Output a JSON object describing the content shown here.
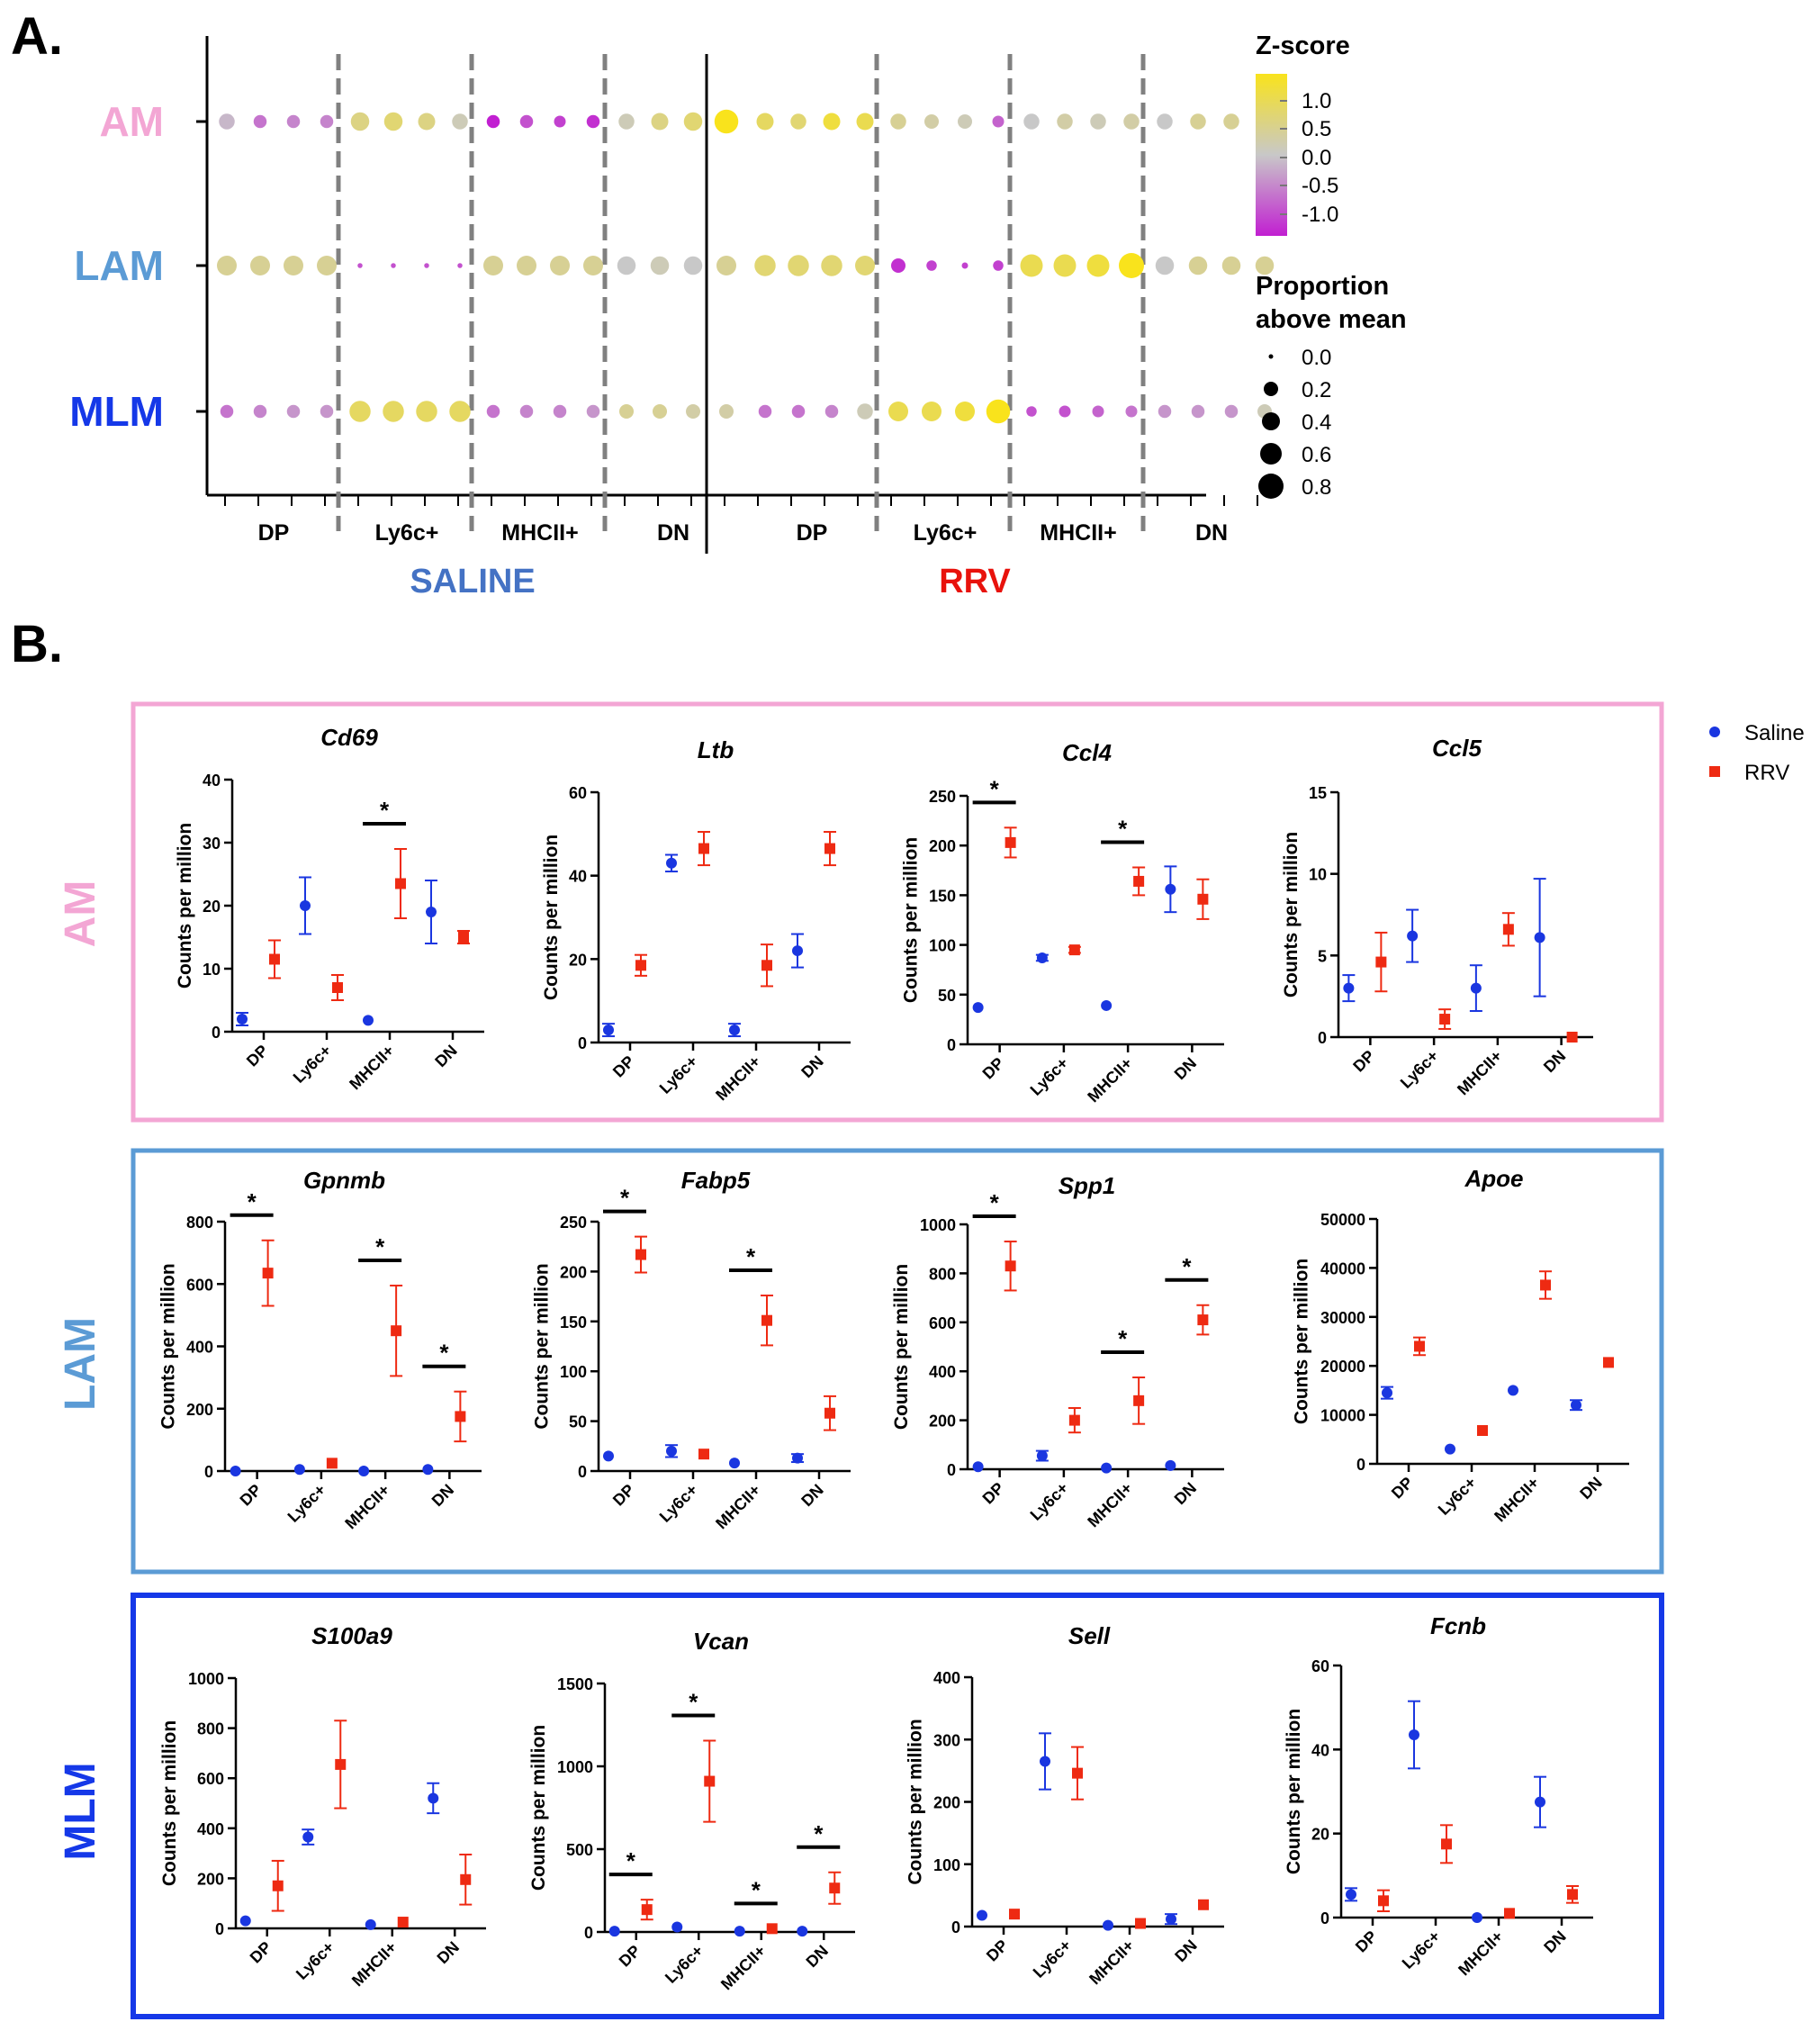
{
  "colors": {
    "saline": "#1a36e0",
    "rrv": "#ee2a12",
    "am": "#f3a6d4",
    "lam": "#5b9bd5",
    "mlm": "#1538e8",
    "saline_label": "#4472c4",
    "rrv_label": "#e8120c",
    "zscore_low": "#c11fd1",
    "zscore_mid": "#c8c8c8",
    "zscore_high": "#f9e31c"
  },
  "panelA": {
    "letter": "A.",
    "rows": [
      "AM",
      "LAM",
      "MLM"
    ],
    "groups": [
      {
        "name": "SALINE",
        "categories": [
          "DP",
          "Ly6c+",
          "MHCII+",
          "DN"
        ]
      },
      {
        "name": "RRV",
        "categories": [
          "DP",
          "Ly6c+",
          "MHCII+",
          "DN"
        ]
      }
    ],
    "legend": {
      "zscore_title": "Z-score",
      "zscore_ticks": [
        "1.0",
        "0.5",
        "0.0",
        "-0.5",
        "-1.0"
      ],
      "size_title_1": "Proportion",
      "size_title_2": "above mean",
      "size_ticks": [
        "0.0",
        "0.2",
        "0.4",
        "0.6",
        "0.8"
      ]
    }
  },
  "chart_data": [
    {
      "type": "dotplot",
      "description_rows": [
        "AM",
        "LAM",
        "MLM"
      ],
      "columns": [
        "SALINE DP",
        "SALINE Ly6c+",
        "SALINE MHCII+",
        "SALINE DN",
        "RRV DP",
        "RRV Ly6c+",
        "RRV MHCII+",
        "RRV DN"
      ],
      "genes_per_column": 4,
      "zscore": [
        [
          [
            -0.1,
            -0.5,
            -0.4,
            -0.4
          ],
          [
            0.4,
            0.5,
            0.4,
            0.1
          ],
          [
            -1.0,
            -0.7,
            -0.8,
            -0.9
          ],
          [
            0.1,
            0.4,
            0.5,
            1.0
          ],
          [
            0.6,
            0.5,
            0.8,
            0.7
          ],
          [
            0.3,
            0.2,
            0.1,
            -0.6
          ],
          [
            0.0,
            0.2,
            0.1,
            0.2
          ],
          [
            0.0,
            0.3,
            0.3,
            0.3
          ]
        ],
        [
          [
            0.3,
            0.3,
            0.3,
            0.3
          ],
          [
            -0.7,
            -0.7,
            -0.7,
            -0.7
          ],
          [
            0.3,
            0.3,
            0.3,
            0.3
          ],
          [
            0.0,
            0.1,
            0.0,
            0.3
          ],
          [
            0.5,
            0.5,
            0.5,
            0.5
          ],
          [
            -0.9,
            -0.8,
            -0.8,
            -0.8
          ],
          [
            0.7,
            0.7,
            0.8,
            1.0
          ],
          [
            0.0,
            0.3,
            0.3,
            0.3
          ]
        ],
        [
          [
            -0.5,
            -0.4,
            -0.3,
            -0.3
          ],
          [
            0.6,
            0.6,
            0.6,
            0.6
          ],
          [
            -0.5,
            -0.4,
            -0.4,
            -0.3
          ],
          [
            0.3,
            0.3,
            0.2,
            0.2
          ],
          [
            -0.5,
            -0.5,
            -0.4,
            0.1
          ],
          [
            0.7,
            0.7,
            0.8,
            1.0
          ],
          [
            -0.7,
            -0.7,
            -0.6,
            -0.5
          ],
          [
            -0.3,
            -0.3,
            -0.3,
            0.1
          ]
        ]
      ],
      "proportion": [
        [
          [
            0.45,
            0.35,
            0.35,
            0.35
          ],
          [
            0.55,
            0.55,
            0.5,
            0.45
          ],
          [
            0.35,
            0.35,
            0.3,
            0.35
          ],
          [
            0.45,
            0.5,
            0.55,
            0.75
          ],
          [
            0.5,
            0.45,
            0.5,
            0.5
          ],
          [
            0.45,
            0.4,
            0.4,
            0.3
          ],
          [
            0.45,
            0.45,
            0.45,
            0.45
          ],
          [
            0.45,
            0.45,
            0.45,
            0.5
          ]
        ],
        [
          [
            0.6,
            0.6,
            0.6,
            0.6
          ],
          [
            0.05,
            0.05,
            0.05,
            0.05
          ],
          [
            0.6,
            0.6,
            0.6,
            0.6
          ],
          [
            0.55,
            0.55,
            0.55,
            0.6
          ],
          [
            0.65,
            0.65,
            0.65,
            0.6
          ],
          [
            0.4,
            0.25,
            0.1,
            0.25
          ],
          [
            0.7,
            0.7,
            0.7,
            0.8
          ],
          [
            0.55,
            0.55,
            0.55,
            0.55
          ]
        ],
        [
          [
            0.35,
            0.35,
            0.35,
            0.35
          ],
          [
            0.65,
            0.65,
            0.65,
            0.65
          ],
          [
            0.35,
            0.35,
            0.35,
            0.35
          ],
          [
            0.4,
            0.4,
            0.4,
            0.4
          ],
          [
            0.35,
            0.35,
            0.35,
            0.45
          ],
          [
            0.6,
            0.6,
            0.6,
            0.75
          ],
          [
            0.25,
            0.3,
            0.3,
            0.3
          ],
          [
            0.35,
            0.35,
            0.35,
            0.4
          ]
        ]
      ]
    },
    {
      "type": "scatter",
      "panel": "B",
      "title_letter": "B.",
      "ylabel": "Counts per million",
      "categories": [
        "DP",
        "Ly6c+",
        "MHCII+",
        "DN"
      ],
      "series_names": [
        "Saline",
        "RRV"
      ],
      "sections": [
        {
          "name": "AM",
          "plots": [
            {
              "gene": "Cd69",
              "ylim": [
                0,
                40
              ],
              "ticks": [
                "0",
                "10",
                "20",
                "30",
                "40"
              ],
              "saline": [
                [
                  2,
                  1
                ],
                [
                  20,
                  4.5
                ],
                [
                  1.8,
                  0
                ],
                [
                  19,
                  5
                ]
              ],
              "rrv": [
                [
                  11.5,
                  3
                ],
                [
                  7,
                  2
                ],
                [
                  23.5,
                  5.5
                ],
                [
                  15,
                  1
                ]
              ],
              "sig": [
                2
              ]
            },
            {
              "gene": "Ltb",
              "ylim": [
                0,
                60
              ],
              "ticks": [
                "0",
                "20",
                "40",
                "60"
              ],
              "saline": [
                [
                  3,
                  1.5
                ],
                [
                  43,
                  2
                ],
                [
                  3,
                  1.5
                ],
                [
                  22,
                  4
                ]
              ],
              "rrv": [
                [
                  18.5,
                  2.5
                ],
                [
                  46.5,
                  4
                ],
                [
                  18.5,
                  5
                ],
                [
                  46.5,
                  4
                ]
              ],
              "sig": []
            },
            {
              "gene": "Ccl4",
              "ylim": [
                0,
                250
              ],
              "ticks": [
                "0",
                "50",
                "100",
                "150",
                "200",
                "250"
              ],
              "saline": [
                [
                  37,
                  0
                ],
                [
                  87,
                  3
                ],
                [
                  39,
                  0
                ],
                [
                  156,
                  23
                ]
              ],
              "rrv": [
                [
                  203,
                  15
                ],
                [
                  95,
                  3
                ],
                [
                  164,
                  14
                ],
                [
                  146,
                  20
                ]
              ],
              "sig": [
                0,
                2
              ]
            },
            {
              "gene": "Ccl5",
              "ylim": [
                0,
                15
              ],
              "ticks": [
                "0",
                "5",
                "10",
                "15"
              ],
              "saline": [
                [
                  3,
                  0.8
                ],
                [
                  6.2,
                  1.6
                ],
                [
                  3,
                  1.4
                ],
                [
                  6.1,
                  3.6
                ]
              ],
              "rrv": [
                [
                  4.6,
                  1.8
                ],
                [
                  1.1,
                  0.6
                ],
                [
                  6.6,
                  1
                ],
                [
                  0,
                  0
                ]
              ],
              "sig": []
            }
          ]
        },
        {
          "name": "LAM",
          "plots": [
            {
              "gene": "Gpnmb",
              "ylim": [
                0,
                800
              ],
              "ticks": [
                "0",
                "200",
                "400",
                "600",
                "800"
              ],
              "saline": [
                [
                  0,
                  0
                ],
                [
                  5,
                  0
                ],
                [
                  0,
                  0
                ],
                [
                  5,
                  0
                ]
              ],
              "rrv": [
                [
                  635,
                  105
                ],
                [
                  25,
                  0
                ],
                [
                  450,
                  145
                ],
                [
                  175,
                  80
                ]
              ],
              "sig": [
                0,
                2,
                3
              ]
            },
            {
              "gene": "Fabp5",
              "ylim": [
                0,
                250
              ],
              "ticks": [
                "0",
                "50",
                "100",
                "150",
                "200",
                "250"
              ],
              "saline": [
                [
                  15,
                  0
                ],
                [
                  20,
                  6
                ],
                [
                  8,
                  0
                ],
                [
                  13,
                  4
                ]
              ],
              "rrv": [
                [
                  217,
                  18
                ],
                [
                  17,
                  0
                ],
                [
                  151,
                  25
                ],
                [
                  58,
                  17
                ]
              ],
              "sig": [
                0,
                2
              ]
            },
            {
              "gene": "Spp1",
              "ylim": [
                0,
                1000
              ],
              "ticks": [
                "0",
                "200",
                "400",
                "600",
                "800",
                "1000"
              ],
              "saline": [
                [
                  10,
                  0
                ],
                [
                  55,
                  20
                ],
                [
                  5,
                  0
                ],
                [
                  15,
                  0
                ]
              ],
              "rrv": [
                [
                  830,
                  100
                ],
                [
                  200,
                  50
                ],
                [
                  280,
                  95
                ],
                [
                  610,
                  60
                ]
              ],
              "sig": [
                0,
                2,
                3
              ]
            },
            {
              "gene": "Apoe",
              "ylim": [
                0,
                50000
              ],
              "ticks": [
                "0",
                "10000",
                "20000",
                "30000",
                "40000",
                "50000"
              ],
              "saline": [
                [
                  14500,
                  1200
                ],
                [
                  3000,
                  0
                ],
                [
                  15000,
                  0
                ],
                [
                  12000,
                  1000
                ]
              ],
              "rrv": [
                [
                  24000,
                  1800
                ],
                [
                  6800,
                  0
                ],
                [
                  36500,
                  2800
                ],
                [
                  20700,
                  0
                ]
              ],
              "sig": []
            }
          ]
        },
        {
          "name": "MLM",
          "plots": [
            {
              "gene": "S100a9",
              "ylim": [
                0,
                1000
              ],
              "ticks": [
                "0",
                "200",
                "400",
                "600",
                "800",
                "1000"
              ],
              "saline": [
                [
                  30,
                  0
                ],
                [
                  365,
                  30
                ],
                [
                  15,
                  0
                ],
                [
                  520,
                  60
                ]
              ],
              "rrv": [
                [
                  170,
                  100
                ],
                [
                  655,
                  175
                ],
                [
                  25,
                  0
                ],
                [
                  195,
                  100
                ]
              ],
              "sig": []
            },
            {
              "gene": "Vcan",
              "ylim": [
                0,
                1500
              ],
              "ticks": [
                "0",
                "500",
                "1000",
                "1500"
              ],
              "saline": [
                [
                  5,
                  0
                ],
                [
                  30,
                  0
                ],
                [
                  5,
                  0
                ],
                [
                  5,
                  0
                ]
              ],
              "rrv": [
                [
                  135,
                  60
                ],
                [
                  910,
                  245
                ],
                [
                  20,
                  0
                ],
                [
                  265,
                  95
                ]
              ],
              "sig": [
                0,
                1,
                2,
                3
              ]
            },
            {
              "gene": "Sell",
              "ylim": [
                0,
                400
              ],
              "ticks": [
                "0",
                "100",
                "200",
                "300",
                "400"
              ],
              "saline": [
                [
                  18,
                  0
                ],
                [
                  265,
                  45
                ],
                [
                  2,
                  0
                ],
                [
                  12,
                  8
                ]
              ],
              "rrv": [
                [
                  20,
                  0
                ],
                [
                  246,
                  42
                ],
                [
                  5,
                  0
                ],
                [
                  35,
                  0
                ]
              ],
              "sig": []
            },
            {
              "gene": "Fcnb",
              "ylim": [
                0,
                60
              ],
              "ticks": [
                "0",
                "20",
                "40",
                "60"
              ],
              "saline": [
                [
                  5.5,
                  1.5
                ],
                [
                  43.5,
                  8
                ],
                [
                  0,
                  0
                ],
                [
                  27.5,
                  6
                ]
              ],
              "rrv": [
                [
                  4,
                  2.5
                ],
                [
                  17.5,
                  4.5
                ],
                [
                  1,
                  0
                ],
                [
                  5.5,
                  2
                ]
              ],
              "sig": []
            }
          ]
        }
      ]
    }
  ]
}
